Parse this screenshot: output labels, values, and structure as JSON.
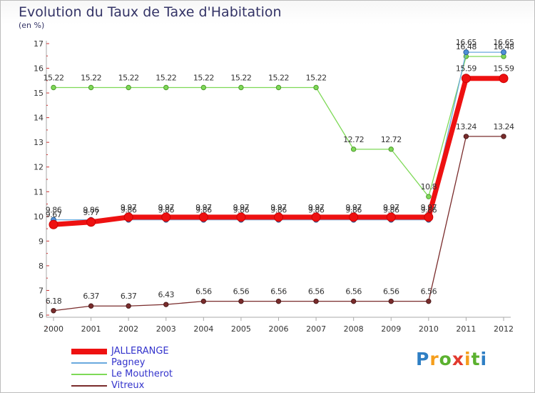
{
  "title": "Evolution du Taux de Taxe d'Habitation",
  "unit_label": "(en %)",
  "logo_text": "Proxiti",
  "chart_data": {
    "type": "line",
    "title": "Evolution du Taux de Taxe d'Habitation",
    "ylabel": "(en %)",
    "xlabel": "",
    "ylim": [
      6,
      17
    ],
    "yticks": [
      6,
      7,
      8,
      9,
      10,
      11,
      12,
      13,
      14,
      15,
      16,
      17
    ],
    "grid": false,
    "legend_position": "bottom-left",
    "categories": [
      "2000",
      "2001",
      "2002",
      "2003",
      "2004",
      "2005",
      "2006",
      "2007",
      "2008",
      "2009",
      "2010",
      "2011",
      "2012"
    ],
    "series": [
      {
        "name": "Vitreux",
        "color": "#7a2c2c",
        "values": [
          6.18,
          6.37,
          6.37,
          6.43,
          6.56,
          6.56,
          6.56,
          6.56,
          6.56,
          6.56,
          6.56,
          13.24,
          13.24
        ],
        "labels": [
          "6.18",
          "6.37",
          "6.37",
          "6.43",
          "6.56",
          "6.56",
          "6.56",
          "6.56",
          "6.56",
          "6.56",
          "6.56",
          "13.24",
          "13.24"
        ]
      },
      {
        "name": "Le Moutherot",
        "color": "#7ed957",
        "values": [
          15.22,
          15.22,
          15.22,
          15.22,
          15.22,
          15.22,
          15.22,
          15.22,
          12.72,
          12.72,
          10.8,
          16.48,
          16.48
        ],
        "labels": [
          "15.22",
          "15.22",
          "15.22",
          "15.22",
          "15.22",
          "15.22",
          "15.22",
          "15.22",
          "12.72",
          "12.72",
          "10.8",
          "16.48",
          "16.48"
        ]
      },
      {
        "name": "Pagney",
        "color": "#6aa9de",
        "values": [
          9.86,
          9.86,
          9.86,
          9.86,
          9.86,
          9.86,
          9.86,
          9.86,
          9.86,
          9.86,
          9.86,
          16.65,
          16.65
        ],
        "labels": [
          "9.86",
          "9.86",
          "9.86",
          "9.86",
          "9.86",
          "9.86",
          "9.86",
          "9.86",
          "9.86",
          "9.86",
          "9.86",
          "16.65",
          "16.65"
        ]
      },
      {
        "name": "JALLERANGE",
        "color": "#ee1111",
        "values": [
          9.67,
          9.77,
          9.97,
          9.97,
          9.97,
          9.97,
          9.97,
          9.97,
          9.97,
          9.97,
          9.97,
          15.59,
          15.59
        ],
        "labels": [
          "9.67",
          "9.77",
          "9.97",
          "9.97",
          "9.97",
          "9.97",
          "9.97",
          "9.97",
          "9.97",
          "9.97",
          "9.97",
          "15.59",
          "15.59"
        ]
      }
    ],
    "legend_order": [
      "JALLERANGE",
      "Pagney",
      "Le Moutherot",
      "Vitreux"
    ]
  }
}
